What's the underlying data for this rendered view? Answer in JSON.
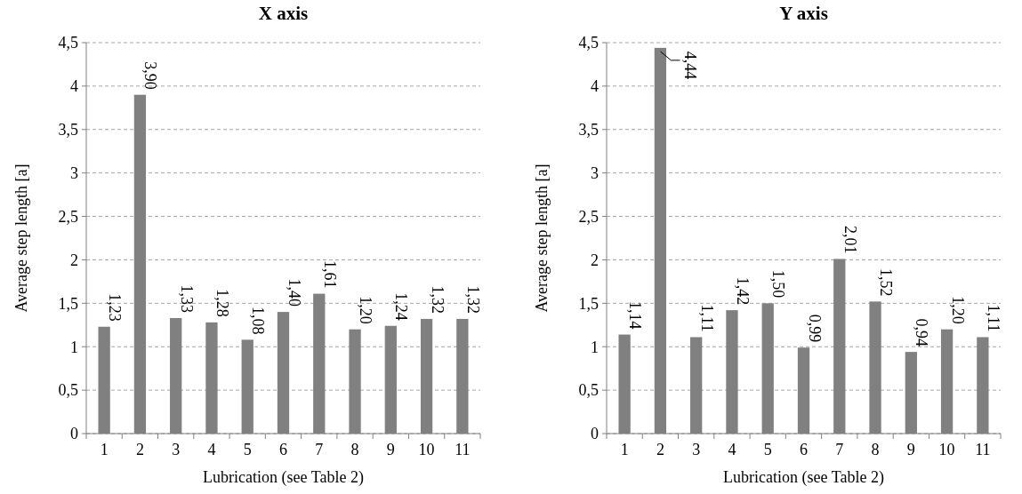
{
  "chart_data": [
    {
      "type": "bar",
      "title": "X axis",
      "xlabel": "Lubrication (see Table 2)",
      "ylabel": "Average step length [a]",
      "categories": [
        "1",
        "2",
        "3",
        "4",
        "5",
        "6",
        "7",
        "8",
        "9",
        "10",
        "11"
      ],
      "values": [
        1.23,
        3.9,
        1.33,
        1.28,
        1.08,
        1.4,
        1.61,
        1.2,
        1.24,
        1.32,
        1.32
      ],
      "value_labels": [
        "1,23",
        "3,90",
        "1,33",
        "1,28",
        "1,08",
        "1,40",
        "1,61",
        "1,20",
        "1,24",
        "1,32",
        "1,32"
      ],
      "color": "#808080",
      "ylim": [
        0,
        4.5
      ],
      "yticks": [
        0,
        {
          "value": 0.5,
          "label": "0,5"
        },
        1,
        {
          "value": 1.5,
          "label": "1,5"
        },
        2,
        {
          "value": 2.5,
          "label": "2,5"
        },
        3,
        {
          "value": 3.5,
          "label": "3,5"
        },
        4,
        {
          "value": 4.5,
          "label": "4,5"
        }
      ],
      "grid": "y"
    },
    {
      "type": "bar",
      "title": "Y axis",
      "xlabel": "Lubrication (see Table 2)",
      "ylabel": "Average step length [a]",
      "categories": [
        "1",
        "2",
        "3",
        "4",
        "5",
        "6",
        "7",
        "8",
        "9",
        "10",
        "11"
      ],
      "values": [
        1.14,
        4.44,
        1.11,
        1.42,
        1.5,
        0.99,
        2.01,
        1.52,
        0.94,
        1.2,
        1.11
      ],
      "value_labels": [
        "1,14",
        "4,44",
        "1,11",
        "1,42",
        "1,50",
        "0,99",
        "2,01",
        "1,52",
        "0,94",
        "1,20",
        "1,11"
      ],
      "color": "#808080",
      "ylim": [
        0,
        4.5
      ],
      "yticks": [
        0,
        {
          "value": 0.5,
          "label": "0,5"
        },
        1,
        {
          "value": 1.5,
          "label": "1,5"
        },
        2,
        {
          "value": 2.5,
          "label": "2,5"
        },
        3,
        {
          "value": 3.5,
          "label": "3,5"
        },
        4,
        {
          "value": 4.5,
          "label": "4,5"
        }
      ],
      "grid": "y"
    }
  ]
}
